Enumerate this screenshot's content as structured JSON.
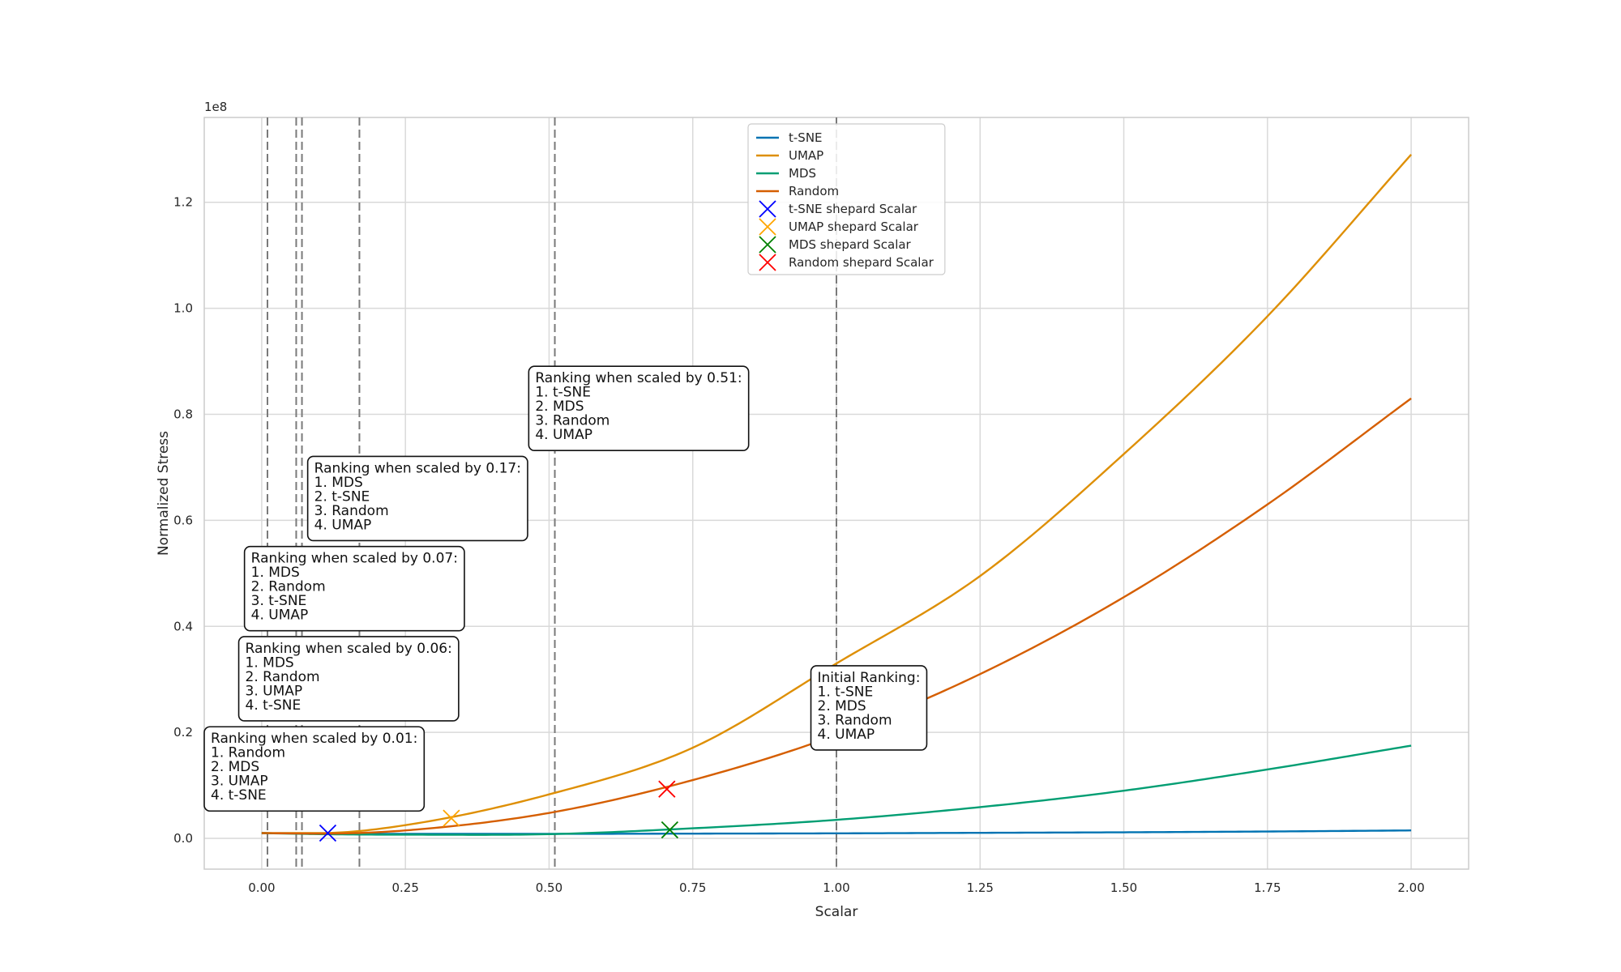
{
  "chart_data": {
    "type": "line",
    "xlabel": "Scalar",
    "ylabel": "Normalized Stress",
    "y_offset_text": "1e8",
    "xlim": [
      -0.1,
      2.1
    ],
    "ylim": [
      -5800000,
      136000000
    ],
    "x_ticks": [
      0.0,
      0.25,
      0.5,
      0.75,
      1.0,
      1.25,
      1.5,
      1.75,
      2.0
    ],
    "x_tick_labels": [
      "0.00",
      "0.25",
      "0.50",
      "0.75",
      "1.00",
      "1.25",
      "1.50",
      "1.75",
      "2.00"
    ],
    "y_ticks": [
      0,
      20000000,
      40000000,
      60000000,
      80000000,
      100000000,
      120000000
    ],
    "y_tick_labels": [
      "0.0",
      "0.2",
      "0.4",
      "0.6",
      "0.8",
      "1.0",
      "1.2"
    ],
    "grid": true,
    "legend_placement": "upper-center",
    "series": [
      {
        "name": "t-SNE",
        "color": "#0173b2",
        "x": [
          0.0,
          0.1,
          0.25,
          0.5,
          0.75,
          1.0,
          1.25,
          1.5,
          1.75,
          2.0
        ],
        "values": [
          1000000,
          900000,
          850000,
          850000,
          900000,
          950000,
          1050000,
          1150000,
          1300000,
          1500000
        ]
      },
      {
        "name": "UMAP",
        "color": "#de8f05",
        "x": [
          0.0,
          0.1,
          0.25,
          0.5,
          0.75,
          1.0,
          1.25,
          1.5,
          1.75,
          2.0
        ],
        "values": [
          1000000,
          1000000,
          2500000,
          8300000,
          17100000,
          33000000,
          49500000,
          72500000,
          98500000,
          129000000
        ]
      },
      {
        "name": "MDS",
        "color": "#029e73",
        "x": [
          0.0,
          0.1,
          0.25,
          0.5,
          0.75,
          1.0,
          1.25,
          1.5,
          1.75,
          2.0
        ],
        "values": [
          1000000,
          800000,
          700000,
          800000,
          1900000,
          3500000,
          5900000,
          9000000,
          13000000,
          17500000
        ]
      },
      {
        "name": "Random",
        "color": "#d55e00",
        "x": [
          0.0,
          0.1,
          0.25,
          0.5,
          0.75,
          1.0,
          1.25,
          1.5,
          1.75,
          2.0
        ],
        "values": [
          1000000,
          900000,
          1500000,
          4800000,
          11000000,
          19500000,
          31000000,
          45500000,
          63000000,
          83000000
        ]
      }
    ],
    "markers": [
      {
        "name": "t-SNE shepard Scalar",
        "color": "#0000ff",
        "x": 0.115,
        "y": 1000000
      },
      {
        "name": "UMAP shepard Scalar",
        "color": "#ffa500",
        "x": 0.33,
        "y": 3800000
      },
      {
        "name": "MDS shepard Scalar",
        "color": "#008000",
        "x": 0.71,
        "y": 1600000
      },
      {
        "name": "Random shepard Scalar",
        "color": "#ff0000",
        "x": 0.705,
        "y": 9300000
      }
    ],
    "vlines": [
      0.01,
      0.06,
      0.07,
      0.17,
      0.51,
      1.0
    ],
    "annotations": [
      {
        "x": -0.1,
        "y": 18000000,
        "lines": [
          "Ranking when scaled by 0.01:",
          "1. Random",
          "2. MDS",
          "3. UMAP",
          "4. t-SNE"
        ]
      },
      {
        "x": -0.04,
        "y": 35000000,
        "lines": [
          "Ranking when scaled by 0.06:",
          "1. MDS",
          "2. Random",
          "3. UMAP",
          "4. t-SNE"
        ]
      },
      {
        "x": -0.03,
        "y": 52000000,
        "lines": [
          "Ranking when scaled by 0.07:",
          "1. MDS",
          "2. Random",
          "3. t-SNE",
          "4. UMAP"
        ]
      },
      {
        "x": 0.08,
        "y": 69000000,
        "lines": [
          "Ranking when scaled by 0.17:",
          "1. MDS",
          "2. t-SNE",
          "3. Random",
          "4. UMAP"
        ]
      },
      {
        "x": 0.4646,
        "y": 86000000,
        "lines": [
          "Ranking when scaled by 0.51:",
          "1. t-SNE",
          "2. MDS",
          "3. Random",
          "4. UMAP"
        ]
      },
      {
        "x": 0.9556,
        "y": 29500000,
        "lines": [
          "Initial Ranking:",
          "1. t-SNE",
          "2. MDS",
          "3. Random",
          "4. UMAP"
        ]
      }
    ]
  }
}
